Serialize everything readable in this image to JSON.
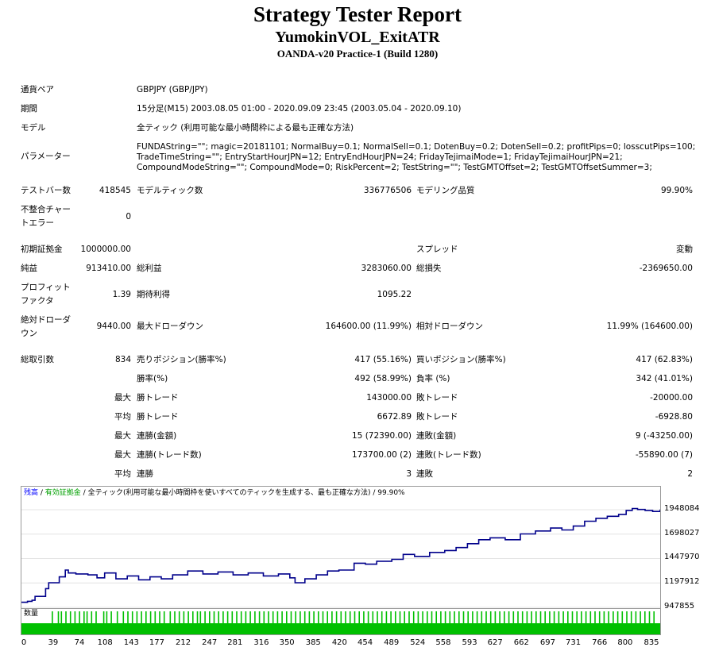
{
  "header": {
    "title": "Strategy Tester Report",
    "ea_name": "YumokinVOL_ExitATR",
    "server": "OANDA-v20 Practice-1 (Build 1280)"
  },
  "settings": {
    "symbol_label": "通貨ペア",
    "symbol_value": "GBPJPY (GBP/JPY)",
    "period_label": "期間",
    "period_value": "15分足(M15) 2003.08.05 01:00 - 2020.09.09 23:45 (2003.05.04 - 2020.09.10)",
    "model_label": "モデル",
    "model_value": "全ティック (利用可能な最小時間枠による最も正確な方法)",
    "params_label": "パラメーター",
    "params_line1": "FUNDAString=\"\"; magic=20181101; NormalBuy=0.1; NormalSell=0.1; DotenBuy=0.2; DotenSell=0.2; profitPips=0; losscutPips=100;",
    "params_line2": "TradeTimeString=\"\"; EntryStartHourJPN=12; EntryEndHourJPN=24; FridayTejimaiMode=1; FridayTejimaiHourJPN=21;",
    "params_line3": "CompoundModeString=\"\"; CompoundMode=0; RiskPercent=2; TestString=\"\"; TestGMTOffset=2; TestGMTOffsetSummer=3;"
  },
  "stats": {
    "bars_label": "テストバー数",
    "bars_value": "418545",
    "ticks_label": "モデルティック数",
    "ticks_value": "336776506",
    "quality_label": "モデリング品質",
    "quality_value": "99.90%",
    "mismatch_label_1": "不整合チャー",
    "mismatch_label_2": "トエラー",
    "mismatch_value": "0",
    "deposit_label": "初期証拠金",
    "deposit_value": "1000000.00",
    "spread_label": "スプレッド",
    "spread_value": "変動",
    "net_label": "純益",
    "net_value": "913410.00",
    "gross_profit_label": "総利益",
    "gross_profit_value": "3283060.00",
    "gross_loss_label": "総損失",
    "gross_loss_value": "-2369650.00",
    "pf_label_1": "プロフィット",
    "pf_label_2": "ファクタ",
    "pf_value": "1.39",
    "expected_label": "期待利得",
    "expected_value": "1095.22",
    "abs_dd_label_1": "絶対ドローダ",
    "abs_dd_label_2": "ウン",
    "abs_dd_value": "9440.00",
    "max_dd_label": "最大ドローダウン",
    "max_dd_value": "164600.00 (11.99%)",
    "rel_dd_label": "相対ドローダウン",
    "rel_dd_value": "11.99% (164600.00)",
    "trades_label": "総取引数",
    "trades_value": "834",
    "short_label": "売りポジション(勝率%)",
    "short_value": "417 (55.16%)",
    "long_label": "買いポジション(勝率%)",
    "long_value": "417 (62.83%)",
    "win_label": "勝率(%)",
    "win_value": "492 (58.99%)",
    "loss_label": "負率 (%)",
    "loss_value": "342 (41.01%)",
    "max_label": "最大",
    "avg_label": "平均",
    "largest_win_label": "勝トレード",
    "largest_win_value": "143000.00",
    "largest_loss_label": "敗トレード",
    "largest_loss_value": "-20000.00",
    "avg_win_label": "勝トレード",
    "avg_win_value": "6672.89",
    "avg_loss_label": "敗トレード",
    "avg_loss_value": "-6928.80",
    "max_consec_win_label": "連勝(金額)",
    "max_consec_win_value": "15 (72390.00)",
    "max_consec_loss_label": "連敗(金額)",
    "max_consec_loss_value": "9 (-43250.00)",
    "max_consec_profit_label": "連勝(トレード数)",
    "max_consec_profit_value": "173700.00 (2)",
    "max_consec_lossamt_label": "連敗(トレード数)",
    "max_consec_lossamt_value": "-55890.00 (7)",
    "avg_consec_win_label": "連勝",
    "avg_consec_win_value": "3",
    "avg_consec_loss_label": "連敗",
    "avg_consec_loss_value": "2"
  },
  "colors": {
    "balance_line": "#00008b",
    "volume_bar": "#00c000",
    "legend_balance": "#0000ff",
    "legend_equity": "#00a000"
  },
  "chart_data": {
    "type": "line",
    "legend": {
      "balance": "残高",
      "sep1": " / ",
      "equity": "有効証拠金",
      "sep2": " / ",
      "model_text": "全ティック(利用可能な最小時間枠を使いすべてのティックを生成する、最も正確な方法)",
      "sep3": " / ",
      "quality": "99.90%"
    },
    "y_ticks": [
      "1948084",
      "1698027",
      "1447970",
      "1197912",
      "947855"
    ],
    "y_tick_values": [
      1948084,
      1698027,
      1447970,
      1197912,
      947855
    ],
    "ylim": [
      947855,
      2037000
    ],
    "x_ticks": [
      "0",
      "39",
      "74",
      "108",
      "143",
      "177",
      "212",
      "247",
      "281",
      "316",
      "350",
      "385",
      "420",
      "454",
      "489",
      "524",
      "558",
      "593",
      "627",
      "662",
      "697",
      "731",
      "766",
      "800",
      "835"
    ],
    "x_tick_values": [
      0,
      39,
      74,
      108,
      143,
      177,
      212,
      247,
      281,
      316,
      350,
      385,
      420,
      454,
      489,
      524,
      558,
      593,
      627,
      662,
      697,
      731,
      766,
      800,
      835
    ],
    "xlim": [
      0,
      845
    ],
    "series": [
      {
        "x": [
          0,
          8,
          14,
          18,
          32,
          36,
          50,
          58,
          62,
          72,
          88,
          100,
          110,
          125,
          140,
          155,
          170,
          185,
          200,
          220,
          240,
          260,
          280,
          300,
          320,
          340,
          355,
          362,
          375,
          390,
          405,
          420,
          440,
          455,
          470,
          490,
          505,
          520,
          540,
          560,
          575,
          590,
          605,
          620,
          640,
          660,
          680,
          700,
          715,
          730,
          745,
          760,
          775,
          790,
          800,
          808,
          815,
          825,
          835,
          845
        ],
        "y": [
          1000000,
          1010000,
          1020000,
          1060000,
          1140000,
          1200000,
          1260000,
          1330000,
          1300000,
          1290000,
          1280000,
          1250000,
          1300000,
          1240000,
          1270000,
          1230000,
          1260000,
          1240000,
          1280000,
          1320000,
          1290000,
          1310000,
          1280000,
          1300000,
          1270000,
          1290000,
          1250000,
          1200000,
          1240000,
          1280000,
          1320000,
          1330000,
          1400000,
          1390000,
          1420000,
          1440000,
          1490000,
          1470000,
          1510000,
          1530000,
          1560000,
          1600000,
          1640000,
          1660000,
          1640000,
          1700000,
          1730000,
          1760000,
          1740000,
          1780000,
          1830000,
          1860000,
          1880000,
          1900000,
          1940000,
          1960000,
          1950000,
          1940000,
          1930000,
          1950000
        ]
      }
    ],
    "volume_label": "数量",
    "volume_index": [
      40,
      48,
      52,
      58,
      64,
      70,
      76,
      82,
      86,
      92,
      98,
      108,
      112,
      118,
      126,
      134,
      140,
      146,
      152,
      158,
      164,
      170,
      176,
      182,
      188,
      196,
      202,
      208,
      214,
      220,
      226,
      232,
      236,
      242,
      248,
      254,
      260,
      266,
      272,
      278,
      284,
      290,
      296,
      302,
      308,
      314,
      320,
      326,
      332,
      338,
      344,
      350,
      356,
      362,
      368,
      374,
      380,
      386,
      392,
      398,
      404,
      410,
      416,
      422,
      428,
      434,
      440,
      446,
      452,
      458,
      464,
      470,
      476,
      482,
      488,
      494,
      500,
      506,
      512,
      518,
      524,
      530,
      536,
      542,
      548,
      554,
      560,
      566,
      572,
      578,
      584,
      590,
      596,
      602,
      608,
      614,
      620,
      626,
      632,
      638,
      644,
      650,
      656,
      662,
      668,
      674,
      680,
      686,
      692,
      698,
      704,
      710,
      716,
      722,
      728,
      734,
      740,
      746,
      752,
      758,
      764,
      770,
      776,
      782,
      788,
      794,
      800,
      806,
      812,
      818,
      824,
      830,
      836
    ]
  }
}
